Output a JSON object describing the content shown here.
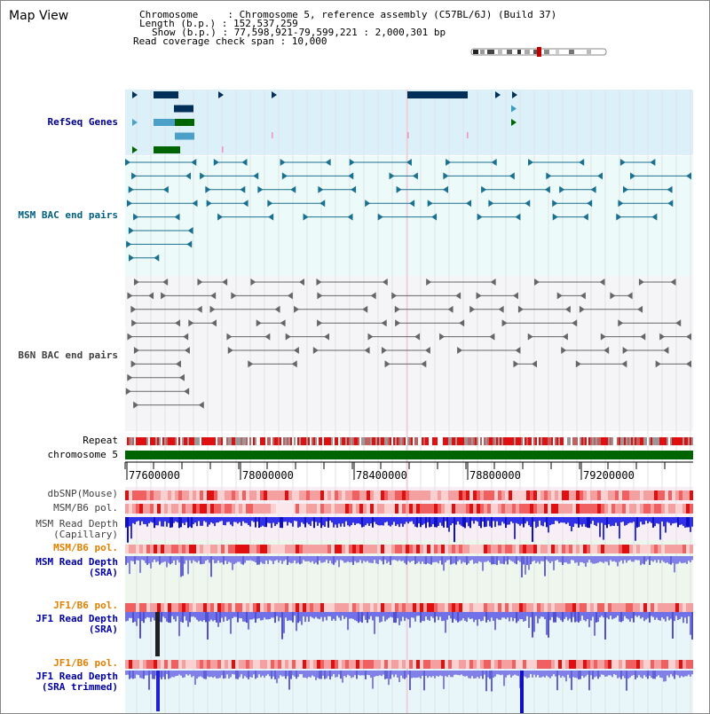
{
  "header": {
    "title": "Map View",
    "info_lines": [
      "Chromosome     : Chromosome 5, reference assembly (C57BL/6J) (Build 37)",
      "Length (b.p.) : 152,537,259",
      "Show (b.p.) : 77,598,921-79,599,221 : 2,000,301 bp",
      "Read coverage check span : 10,000"
    ]
  },
  "tracks": {
    "refseq": "RefSeq Genes",
    "msm_bac": "MSM BAC end pairs",
    "b6n_bac": "B6N BAC end pairs",
    "repeat": "Repeat",
    "chromosome": "chromosome 5",
    "dbsnp": "dbSNP(Mouse)",
    "msm_b6_pol_1": "MSM/B6 pol.",
    "msm_depth_cap": "MSM Read Depth\n(Capillary)",
    "msm_b6_pol_2": "MSM/B6 pol.",
    "msm_depth_sra": "MSM Read Depth\n(SRA)",
    "jf1_b6_pol_1": "JF1/B6 pol.",
    "jf1_depth_sra": "JF1 Read Depth\n(SRA)",
    "jf1_b6_pol_2": "JF1/B6 pol.",
    "jf1_depth_trim": "JF1 Read Depth\n(SRA trimmed)"
  },
  "axis": {
    "ticks": [
      "77600000",
      "78000000",
      "78400000",
      "78800000",
      "79200000"
    ]
  },
  "colors": {
    "refseq_label": "#00008b",
    "msm_label": "#006080",
    "b6n_label": "#404040",
    "orange_label": "#e08000",
    "blue_label": "#0000a0",
    "chromosome_bar": "#006400"
  }
}
